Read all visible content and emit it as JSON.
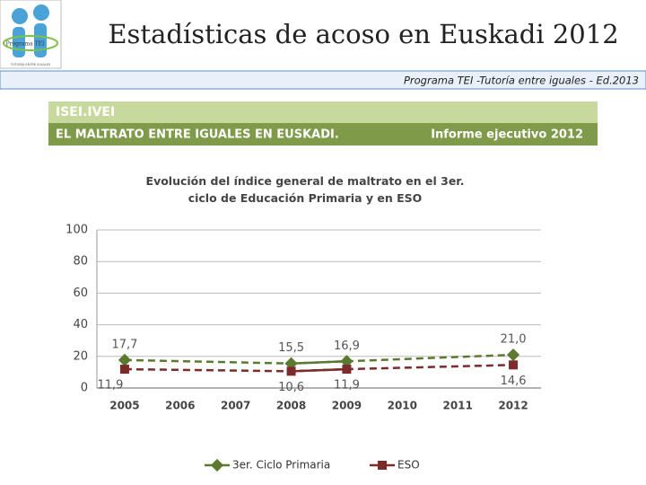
{
  "header": {
    "title": "Estadísticas de acoso en Euskadi 2012",
    "subtitle": "Programa TEI -Tutoría entre iguales - Ed.2013",
    "logo_text": "Programa TEI",
    "logo_caption": "TUTORÍA ENTRE IGUALES"
  },
  "banner": {
    "top": "ISEI.IVEI",
    "left": "EL MALTRATO ENTRE IGUALES EN EUSKADI.",
    "right": "Informe ejecutivo 2012"
  },
  "chart_data": {
    "type": "line",
    "title": "Evolución del índice general de maltrato en el 3er. ciclo de Educación Primaria y en ESO",
    "categories": [
      "2005",
      "2006",
      "2007",
      "2008",
      "2009",
      "2010",
      "2011",
      "2012"
    ],
    "series": [
      {
        "name": "3er. Ciclo Primaria",
        "color": "#5b7a2f",
        "values": [
          17.7,
          null,
          null,
          15.5,
          16.9,
          null,
          null,
          21.0
        ],
        "value_labels": [
          "17,7",
          null,
          null,
          "15,5",
          "16,9",
          null,
          null,
          "21,0"
        ]
      },
      {
        "name": "ESO",
        "color": "#7b2b2b",
        "values": [
          11.9,
          null,
          null,
          10.6,
          11.9,
          null,
          null,
          14.6
        ],
        "value_labels": [
          "11,9",
          null,
          null,
          "10,6",
          "11,9",
          null,
          null,
          "14,6"
        ]
      }
    ],
    "ylim": [
      0,
      100
    ],
    "yticks": [
      0,
      20,
      40,
      60,
      80,
      100
    ],
    "grid": true,
    "legend": "bottom"
  }
}
